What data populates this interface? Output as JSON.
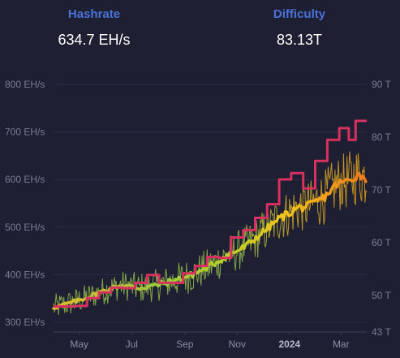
{
  "stats": {
    "hashrate_label": "Hashrate",
    "hashrate_value": "634.7 EH/s",
    "difficulty_label": "Difficulty",
    "difficulty_value": "83.13T"
  },
  "colors": {
    "background": "#1e1f33",
    "stat_label": "#4a72d9",
    "daily_hashrate_early": "#8db44a",
    "daily_hashrate_late": "#d99a1c",
    "avg_hashrate_early": "#9acd3c",
    "avg_hashrate_mid": "#f2c21a",
    "avg_hashrate_late": "#f07a1a",
    "difficulty_line": "#d8305f",
    "grid": "#2c2e45"
  },
  "chart_data": {
    "type": "line",
    "x_start": "2023-04-01",
    "x_end": "2024-03-31",
    "x_tick_labels": [
      {
        "label": "May",
        "date": "2023-05-01"
      },
      {
        "label": "Jul",
        "date": "2023-07-01"
      },
      {
        "label": "Sep",
        "date": "2023-09-01"
      },
      {
        "label": "Nov",
        "date": "2023-11-01"
      },
      {
        "label": "2024",
        "date": "2024-01-01",
        "bold": true
      },
      {
        "label": "Mar",
        "date": "2024-03-01"
      }
    ],
    "y_left": {
      "unit": "EH/s",
      "range": [
        300,
        800
      ],
      "ticks": [
        300,
        400,
        500,
        600,
        700,
        800
      ],
      "tick_labels": [
        "300 EH/s",
        "400 EH/s",
        "500 EH/s",
        "600 EH/s",
        "700 EH/s",
        "800 EH/s"
      ]
    },
    "y_right": {
      "unit": "T",
      "ticks": [
        43,
        50,
        60,
        70,
        80,
        90
      ],
      "tick_labels": [
        "43 T",
        "50 T",
        "60 T",
        "70 T",
        "80 T",
        "90 T"
      ]
    },
    "grid": true,
    "series": [
      {
        "kind": "hashrate_avg",
        "axis": "left",
        "points": [
          [
            "2023-04-01",
            331
          ],
          [
            "2023-04-20",
            340
          ],
          [
            "2023-05-10",
            352
          ],
          [
            "2023-06-01",
            368
          ],
          [
            "2023-06-20",
            378
          ],
          [
            "2023-07-10",
            372
          ],
          [
            "2023-07-30",
            378
          ],
          [
            "2023-08-20",
            388
          ],
          [
            "2023-09-10",
            400
          ],
          [
            "2023-09-30",
            418
          ],
          [
            "2023-10-20",
            440
          ],
          [
            "2023-11-10",
            458
          ],
          [
            "2023-11-30",
            488
          ],
          [
            "2023-12-20",
            518
          ],
          [
            "2024-01-10",
            540
          ],
          [
            "2024-01-25",
            545
          ],
          [
            "2024-02-10",
            562
          ],
          [
            "2024-02-25",
            590
          ],
          [
            "2024-03-10",
            598
          ],
          [
            "2024-03-20",
            610
          ],
          [
            "2024-03-31",
            605
          ]
        ]
      },
      {
        "kind": "difficulty",
        "axis": "right",
        "steps": [
          [
            "2023-04-01",
            47.9
          ],
          [
            "2023-04-27",
            48.0
          ],
          [
            "2023-05-10",
            49.5
          ],
          [
            "2023-05-24",
            50.6
          ],
          [
            "2023-06-07",
            51.5
          ],
          [
            "2023-06-21",
            51.4
          ],
          [
            "2023-07-05",
            52.4
          ],
          [
            "2023-07-19",
            53.9
          ],
          [
            "2023-08-02",
            52.4
          ],
          [
            "2023-08-16",
            52.4
          ],
          [
            "2023-08-30",
            54.2
          ],
          [
            "2023-09-13",
            55.6
          ],
          [
            "2023-09-27",
            57.3
          ],
          [
            "2023-10-11",
            57.1
          ],
          [
            "2023-10-25",
            61.0
          ],
          [
            "2023-11-08",
            62.4
          ],
          [
            "2023-11-22",
            64.7
          ],
          [
            "2023-12-06",
            67.3
          ],
          [
            "2023-12-20",
            72.0
          ],
          [
            "2024-01-03",
            73.2
          ],
          [
            "2024-01-17",
            70.3
          ],
          [
            "2024-01-31",
            75.5
          ],
          [
            "2024-02-14",
            79.5
          ],
          [
            "2024-02-28",
            81.7
          ],
          [
            "2024-03-10",
            79.5
          ],
          [
            "2024-03-18",
            83.1
          ],
          [
            "2024-03-31",
            83.1
          ]
        ]
      },
      {
        "kind": "hashrate_daily",
        "axis": "left",
        "amplitude_early": 28,
        "amplitude_late": 65
      }
    ]
  }
}
